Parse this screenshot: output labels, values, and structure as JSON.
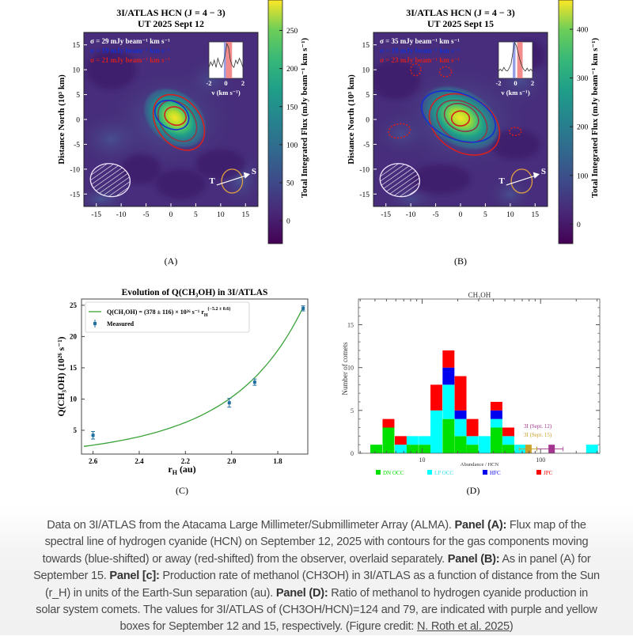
{
  "panels": {
    "A": {
      "label": "(A)",
      "title_line1": "3I/ATLAS HCN (J = 4 − 3)",
      "title_line2": "UT 2025 Sept 12",
      "sigma_total": "σ = 29 mJy beam⁻¹ km s⁻¹",
      "sigma_blue": "σ = 19 mJy beam⁻¹ km s⁻¹",
      "sigma_red": "σ = 21 mJy beam⁻¹ km s⁻¹",
      "ylabel": "Distance North (10³ km)",
      "colorbar_label": "Total Integrated Flux (mJy beam⁻¹ km s⁻¹)",
      "colorbar_ticks": [
        "0",
        "50",
        "100",
        "150",
        "200",
        "250"
      ],
      "colorbar_range": [
        -30,
        290
      ],
      "axis_ticks": [
        "-15",
        "-10",
        "-5",
        "0",
        "5",
        "10",
        "15"
      ],
      "inset_ticks": [
        "-2",
        "0",
        "2"
      ],
      "inset_xlabel": "v (km s⁻¹)",
      "sun_label": "S",
      "tail_label": "T"
    },
    "B": {
      "label": "(B)",
      "title_line1": "3I/ATLAS HCN (J = 4 − 3)",
      "title_line2": "UT 2025 Sept 15",
      "sigma_total": "σ = 35 mJy beam⁻¹ km s⁻¹",
      "sigma_blue": "σ = 19 mJy beam⁻¹ km s⁻¹",
      "sigma_red": "σ = 23 mJy beam⁻¹ km s⁻¹",
      "ylabel": "Distance North (10³ km)",
      "colorbar_label": "Total Integrated Flux (mJy beam⁻¹ km s⁻¹)",
      "colorbar_ticks": [
        "0",
        "100",
        "200",
        "300",
        "400"
      ],
      "colorbar_range": [
        -40,
        460
      ],
      "axis_ticks": [
        "-15",
        "-10",
        "-5",
        "0",
        "5",
        "10",
        "15"
      ],
      "inset_ticks": [
        "-2",
        "0",
        "2"
      ],
      "inset_xlabel": "v (km s⁻¹)",
      "sun_label": "S",
      "tail_label": "T"
    },
    "C": {
      "label": "(C)"
    },
    "D": {
      "label": "(D)"
    }
  },
  "colors": {
    "blue_contour": "#1530d0",
    "red_contour": "#d42020",
    "fit_line": "#3aa23a",
    "measured": "#1f6f9f",
    "dn_occ": "#00e000",
    "lp_occ": "#00ffff",
    "hfc": "#0000ee",
    "jpc": "#ff0000",
    "sept12": "#a3358f",
    "sept15": "#c9a128"
  },
  "chart_data": [
    {
      "type": "scatter",
      "title": "Evolution of Q(CH₃OH) in 3I/ATLAS",
      "xlabel": "r_H (au)",
      "xlabel_main": "r",
      "xlabel_sub": "H",
      "xlabel_unit": " (au)",
      "ylabel": "Q(CH₃OH) (10²⁶ s⁻¹)",
      "xlim": [
        2.65,
        1.67
      ],
      "x_reversed": true,
      "ylim": [
        1.2,
        26
      ],
      "xticks": [
        "2.6",
        "2.4",
        "2.2",
        "2.0",
        "1.8"
      ],
      "yticks": [
        "5",
        "10",
        "15",
        "20",
        "25"
      ],
      "legend_position": "top-left",
      "fit": {
        "label_main": "Q(CH₃OH) = (378 ± 116) × 10²⁶ s⁻¹ r",
        "label_sub": "H",
        "label_sup": "(−5.2 ± 0.6)",
        "coefficient": 378,
        "exponent": -5.2
      },
      "series": [
        {
          "name": "Measured",
          "points": [
            {
              "x": 2.6,
              "y": 4.2,
              "err": 0.6
            },
            {
              "x": 2.01,
              "y": 9.4,
              "err": 0.7
            },
            {
              "x": 1.9,
              "y": 12.7,
              "err": 0.5
            },
            {
              "x": 1.69,
              "y": 24.5,
              "err": 0.4
            }
          ]
        }
      ]
    },
    {
      "type": "bar",
      "stacked": true,
      "title": "CH₃OH",
      "xlabel": "Abundance / HCN",
      "ylabel": "Number of comets",
      "x_scale": "log",
      "xlim": [
        2.9,
        316
      ],
      "ylim": [
        0,
        18
      ],
      "xticks": [
        "10",
        "100"
      ],
      "yticks": [
        "0",
        "5",
        "10",
        "15"
      ],
      "legend_position": "bottom",
      "series_names": [
        "DN OCC",
        "LP OCC",
        "HFC",
        "JPC"
      ],
      "bins": [
        {
          "center": 4.1,
          "counts": [
            1,
            0,
            0,
            0
          ]
        },
        {
          "center": 5.2,
          "counts": [
            3,
            0,
            0,
            1
          ]
        },
        {
          "center": 6.6,
          "counts": [
            0,
            1,
            0,
            1
          ]
        },
        {
          "center": 8.3,
          "counts": [
            1,
            1,
            0,
            0
          ]
        },
        {
          "center": 10.5,
          "counts": [
            1,
            1,
            0,
            0
          ]
        },
        {
          "center": 13.2,
          "counts": [
            0,
            5,
            0,
            3
          ]
        },
        {
          "center": 16.7,
          "counts": [
            4,
            4,
            2,
            2
          ]
        },
        {
          "center": 21.1,
          "counts": [
            2,
            2,
            1,
            4
          ]
        },
        {
          "center": 26.6,
          "counts": [
            1,
            1,
            0,
            2
          ]
        },
        {
          "center": 33.6,
          "counts": [
            0,
            2,
            0,
            0
          ]
        },
        {
          "center": 42.4,
          "counts": [
            3,
            1,
            1,
            1
          ]
        },
        {
          "center": 53.5,
          "counts": [
            1,
            1,
            0,
            1
          ]
        },
        {
          "center": 67.5,
          "counts": [
            0,
            1,
            0,
            0
          ]
        },
        {
          "center": 272,
          "counts": [
            0,
            1,
            0,
            0
          ]
        }
      ],
      "annotations": [
        {
          "label": "3I (Sept. 12)",
          "value": 124,
          "err_low": 93,
          "err_high": 155,
          "color": "#a3358f"
        },
        {
          "label": "3I (Sept. 15)",
          "value": 79,
          "err_low": 66,
          "err_high": 93,
          "color": "#c9a128"
        }
      ]
    }
  ],
  "caption": {
    "intro": "Data on 3I/ATLAS from the Atacama Large Millimeter/Submillimeter Array (ALMA). ",
    "a_label": "Panel (A):",
    "a_text": " Flux map of the spectral line of hydrogen cyanide (HCN) on September 12, 2025 with contours for the gas components moving towards (blue-shifted) or away (red-shifted) from the observer, overlaid separately. ",
    "b_label": "Panel (B):",
    "b_text": " As in panel (A) for September 15. ",
    "c_label": "Panel [c]:",
    "c_text": " Production rate of methanol (CH3OH) in 3I/ATLAS as a function of distance from the Sun (r_H) in units of the Earth-Sun separation (au). ",
    "d_label": "Panel (D):",
    "d_text": " Ratio of methanol to hydrogen cyanide production in solar system comets. The values for 3I/ATLAS of (CH3OH/HCN)=124 and 79, are indicated with purple and yellow boxes for September 12 and 15, respectively. (Figure credit: ",
    "credit_link": "N. Roth et al. 2025",
    "end": ")"
  }
}
